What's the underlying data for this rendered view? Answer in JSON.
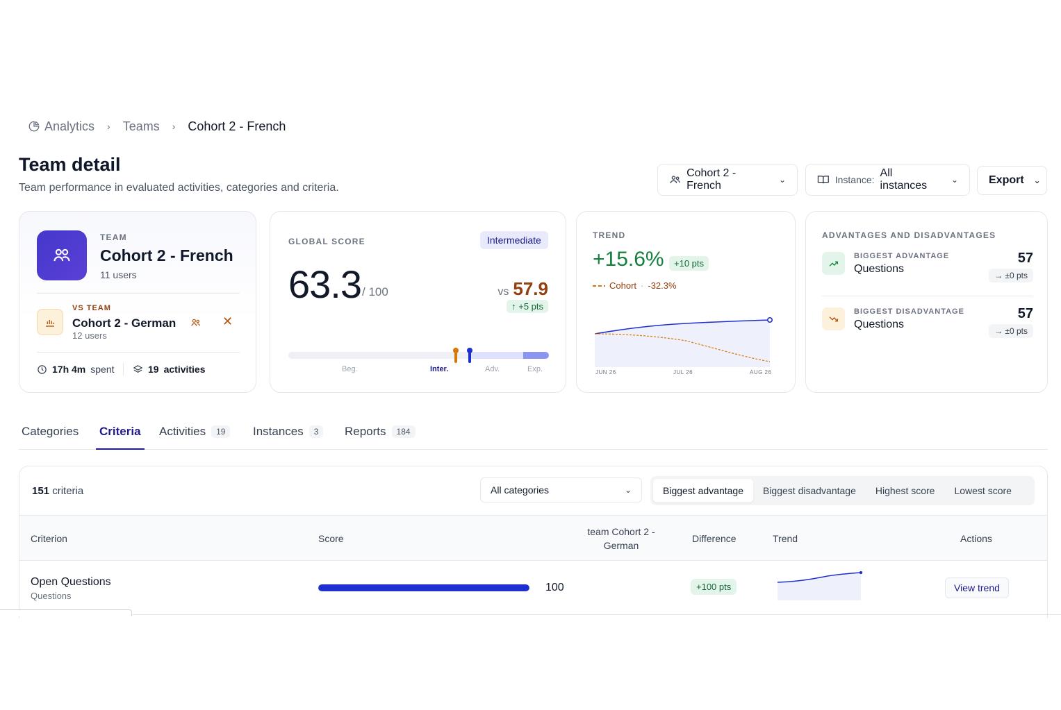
{
  "breadcrumb": {
    "root": "Analytics",
    "teams": "Teams",
    "current": "Cohort 2 - French"
  },
  "header": {
    "title": "Team detail",
    "subtitle": "Team performance in evaluated activities, categories and criteria.",
    "team_select": "Cohort 2 - French",
    "instance_label": "Instance:",
    "instance_value": "All instances",
    "export_label": "Export"
  },
  "team_card": {
    "label": "TEAM",
    "name": "Cohort 2 - French",
    "users": "11 users",
    "vs_label": "VS TEAM",
    "vs_name": "Cohort 2 - German",
    "vs_users": "12 users",
    "time_spent": "17h 4m",
    "time_suffix": "spent",
    "activities_count": "19",
    "activities_label": "activities"
  },
  "score_card": {
    "label": "GLOBAL SCORE",
    "level": "Intermediate",
    "score": "63.3",
    "max": "/ 100",
    "vs": "vs",
    "vs_score": "57.9",
    "delta": "↑ +5 pts",
    "levels": [
      "Beg.",
      "Inter.",
      "Adv.",
      "Exp."
    ],
    "team_score_value": 63.3,
    "vs_score_value": 57.9
  },
  "trend_card": {
    "label": "TREND",
    "change": "+15.6%",
    "pts": "+10 pts",
    "cohort_label": "Cohort",
    "cohort_sep": "·",
    "cohort_change": "-32.3%",
    "axis": [
      "JUN 26",
      "JUL 26",
      "AUG 26"
    ]
  },
  "adv_card": {
    "label": "ADVANTAGES AND DISADVANTAGES",
    "advantage": {
      "sub": "BIGGEST ADVANTAGE",
      "name": "Questions",
      "value": "57",
      "delta": "→ ±0 pts"
    },
    "disadvantage": {
      "sub": "BIGGEST DISADVANTAGE",
      "name": "Questions",
      "value": "57",
      "delta": "→ ±0 pts"
    }
  },
  "tabs": [
    {
      "label": "Categories",
      "count": ""
    },
    {
      "label": "Criteria",
      "count": ""
    },
    {
      "label": "Activities",
      "count": "19"
    },
    {
      "label": "Instances",
      "count": "3"
    },
    {
      "label": "Reports",
      "count": "184"
    }
  ],
  "criteria": {
    "count": "151",
    "count_label": "criteria",
    "category_filter": "All categories",
    "sort_options": [
      "Biggest advantage",
      "Biggest disadvantage",
      "Highest score",
      "Lowest score"
    ],
    "columns": {
      "criterion": "Criterion",
      "score": "Score",
      "compare": "team Cohort 2 - German",
      "difference": "Difference",
      "trend": "Trend",
      "actions": "Actions"
    },
    "rows": [
      {
        "name": "Open Questions",
        "category": "Questions",
        "score": "100",
        "score_value": 100,
        "difference": "+100 pts",
        "action": "View trend"
      }
    ]
  },
  "colors": {
    "accent": "#1e1b8a",
    "team": "#1e2fcf",
    "cohort": "#d97706",
    "positive": "#15803d"
  }
}
